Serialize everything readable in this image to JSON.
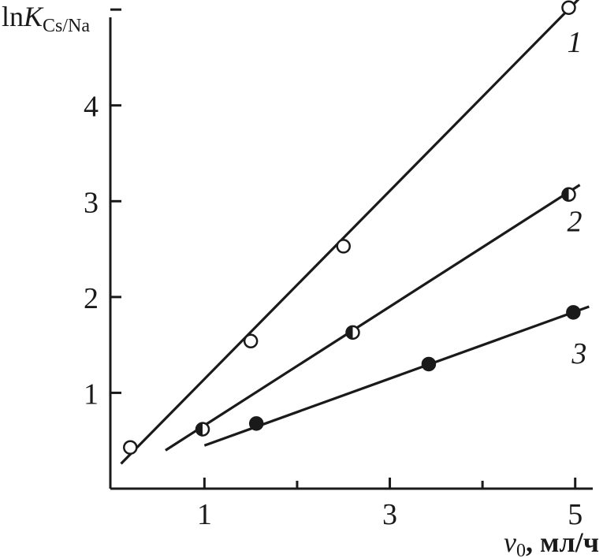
{
  "chart_data": {
    "type": "scatter",
    "title": "",
    "ylabel": {
      "prefix": "ln",
      "symbol": "K",
      "subscript": "Cs/Na"
    },
    "xlabel": {
      "symbol": "v",
      "subscript": "0",
      "unit": ", мл/ч"
    },
    "xlim": [
      -0.015,
      5.3
    ],
    "ylim": [
      0,
      5.1
    ],
    "x_ticks": [
      1,
      3,
      5
    ],
    "x_tick_labels": [
      "1",
      "3",
      "5"
    ],
    "x_minor_ticks": [
      2,
      4
    ],
    "y_ticks": [
      1,
      2,
      3,
      4,
      5
    ],
    "y_tick_labels": [
      "1",
      "2",
      "3",
      "4"
    ],
    "grid": false,
    "legend": "none",
    "series": [
      {
        "name": "1",
        "marker": "open",
        "points": [
          [
            0.2,
            0.43
          ],
          [
            1.5,
            1.54
          ],
          [
            2.5,
            2.53
          ],
          [
            4.93,
            5.02
          ]
        ],
        "fit": [
          [
            0.1,
            0.26
          ],
          [
            5.15,
            5.22
          ]
        ]
      },
      {
        "name": "2",
        "marker": "half",
        "points": [
          [
            0.98,
            0.62
          ],
          [
            2.6,
            1.63
          ],
          [
            4.93,
            3.07
          ]
        ],
        "fit": [
          [
            0.58,
            0.4
          ],
          [
            5.05,
            3.17
          ]
        ]
      },
      {
        "name": "3",
        "marker": "filled",
        "points": [
          [
            1.56,
            0.68
          ],
          [
            3.42,
            1.3
          ],
          [
            4.98,
            1.84
          ]
        ],
        "fit": [
          [
            1.0,
            0.45
          ],
          [
            5.15,
            1.9
          ]
        ]
      }
    ]
  }
}
